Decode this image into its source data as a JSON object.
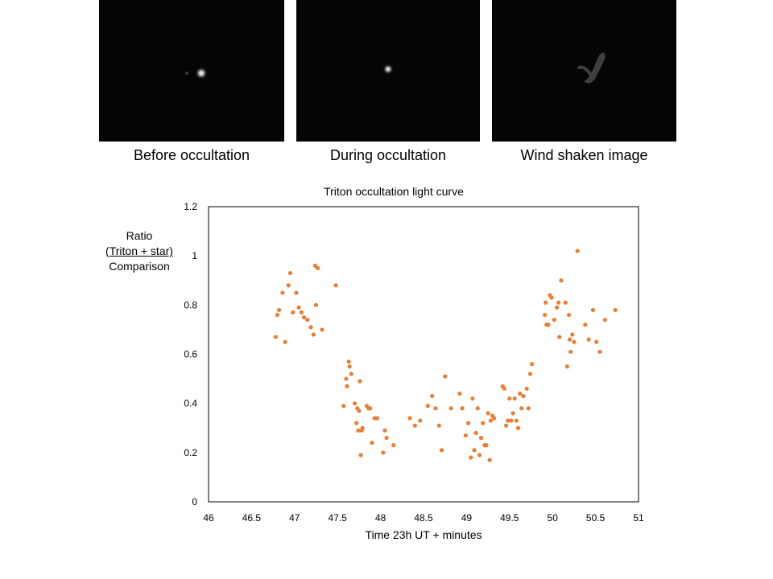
{
  "panels": [
    {
      "caption": "Before occultation"
    },
    {
      "caption": "During occultation"
    },
    {
      "caption": "Wind shaken image"
    }
  ],
  "colors": {
    "point": "#ED7D31",
    "axis": "#000000",
    "panel_bg": "#050505"
  },
  "chart_data": {
    "type": "scatter",
    "title": "Triton occultation light curve",
    "xlabel": "Time 23h UT + minutes",
    "ylabel_lines": [
      "Ratio",
      "(Triton + star)",
      "Comparison"
    ],
    "xlim": [
      46,
      51
    ],
    "ylim": [
      0,
      1.2
    ],
    "x_ticks": [
      "46",
      "46.5",
      "47",
      "47.5",
      "48",
      "48.5",
      "49",
      "49.5",
      "50",
      "50.5",
      "51"
    ],
    "y_ticks": [
      "0",
      "0.2",
      "0.4",
      "0.6",
      "0.8",
      "1",
      "1.2"
    ],
    "grid": false,
    "legend": "none",
    "series": [
      {
        "x": [
          46.78,
          46.8,
          46.82,
          46.86,
          46.89,
          46.93,
          46.95,
          46.98,
          47.02,
          47.05,
          47.08,
          47.11,
          47.15,
          47.19,
          47.22,
          47.24,
          47.25,
          47.27,
          47.32,
          47.48,
          47.57,
          47.6,
          47.61,
          47.63,
          47.64,
          47.66,
          47.7,
          47.72,
          47.73,
          47.74,
          47.75,
          47.76,
          47.77,
          47.78,
          47.79,
          47.84,
          47.86,
          47.88,
          47.9,
          47.93,
          47.96,
          48.03,
          48.05,
          48.07,
          48.15,
          48.34,
          48.4,
          48.46,
          48.55,
          48.6,
          48.64,
          48.68,
          48.71,
          48.75,
          48.82,
          48.92,
          48.95,
          48.99,
          49.02,
          49.05,
          49.07,
          49.09,
          49.11,
          49.13,
          49.15,
          49.17,
          49.19,
          49.21,
          49.23,
          49.25,
          49.27,
          49.28,
          49.3,
          49.32,
          49.42,
          49.44,
          49.46,
          49.48,
          49.5,
          49.52,
          49.54,
          49.56,
          49.58,
          49.6,
          49.62,
          49.64,
          49.66,
          49.7,
          49.72,
          49.74,
          49.76,
          49.91,
          49.92,
          49.93,
          49.95,
          49.97,
          49.99,
          50.02,
          50.05,
          50.07,
          50.08,
          50.1,
          50.15,
          50.17,
          50.19,
          50.2,
          50.21,
          50.23,
          50.25,
          50.29,
          50.38,
          50.42,
          50.47,
          50.51,
          50.55,
          50.61,
          50.73
        ],
        "y": [
          0.67,
          0.76,
          0.78,
          0.85,
          0.65,
          0.88,
          0.93,
          0.77,
          0.85,
          0.79,
          0.77,
          0.75,
          0.74,
          0.71,
          0.68,
          0.96,
          0.8,
          0.95,
          0.7,
          0.88,
          0.39,
          0.5,
          0.47,
          0.57,
          0.55,
          0.52,
          0.4,
          0.32,
          0.38,
          0.29,
          0.37,
          0.49,
          0.19,
          0.29,
          0.3,
          0.39,
          0.38,
          0.38,
          0.24,
          0.34,
          0.34,
          0.2,
          0.29,
          0.26,
          0.23,
          0.34,
          0.31,
          0.33,
          0.39,
          0.43,
          0.38,
          0.31,
          0.21,
          0.51,
          0.38,
          0.44,
          0.38,
          0.27,
          0.32,
          0.18,
          0.42,
          0.21,
          0.28,
          0.38,
          0.19,
          0.26,
          0.32,
          0.23,
          0.23,
          0.36,
          0.17,
          0.33,
          0.35,
          0.34,
          0.47,
          0.46,
          0.31,
          0.33,
          0.42,
          0.33,
          0.36,
          0.42,
          0.33,
          0.3,
          0.44,
          0.38,
          0.43,
          0.46,
          0.38,
          0.52,
          0.56,
          0.76,
          0.81,
          0.72,
          0.72,
          0.84,
          0.83,
          0.74,
          0.79,
          0.81,
          0.67,
          0.9,
          0.81,
          0.55,
          0.76,
          0.66,
          0.61,
          0.68,
          0.65,
          1.02,
          0.72,
          0.66,
          0.78,
          0.65,
          0.61,
          0.74,
          0.78
        ]
      }
    ]
  }
}
